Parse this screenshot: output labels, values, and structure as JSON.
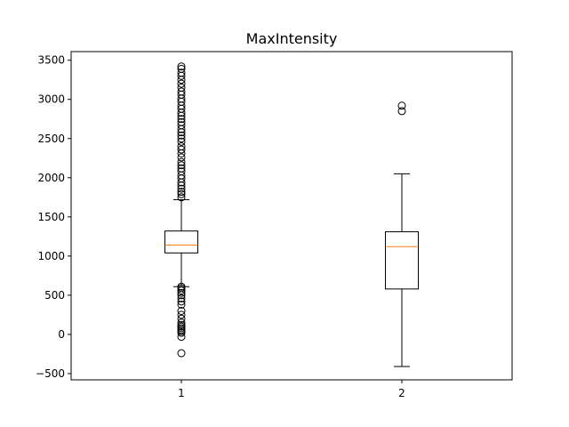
{
  "chart_data": {
    "type": "boxplot",
    "title": "MaxIntensity",
    "xlabel": "",
    "ylabel": "",
    "categories": [
      "1",
      "2"
    ],
    "ylim": [
      -580,
      3610
    ],
    "yticks": [
      -500,
      0,
      500,
      1000,
      1500,
      2000,
      2500,
      3000,
      3500
    ],
    "ytick_labels": [
      "−500",
      "0",
      "500",
      "1000",
      "1500",
      "2000",
      "2500",
      "3000",
      "3500"
    ],
    "grid": false,
    "colors": {
      "box": "#000000",
      "median": "#ff7f0e",
      "background": "#ffffff"
    },
    "boxes": [
      {
        "category": "1",
        "whisker_low": 610,
        "q1": 1040,
        "median": 1140,
        "q3": 1320,
        "whisker_high": 1720,
        "outliers": [
          -240,
          -30,
          20,
          40,
          60,
          80,
          100,
          120,
          150,
          200,
          250,
          300,
          380,
          420,
          460,
          500,
          530,
          560,
          590,
          610,
          1750,
          1790,
          1820,
          1860,
          1900,
          1940,
          1990,
          2030,
          2080,
          2120,
          2160,
          2200,
          2260,
          2310,
          2360,
          2400,
          2460,
          2500,
          2540,
          2580,
          2620,
          2670,
          2710,
          2750,
          2790,
          2830,
          2880,
          2920,
          2970,
          3010,
          3060,
          3100,
          3150,
          3200,
          3250,
          3300,
          3340,
          3390,
          3420
        ]
      },
      {
        "category": "2",
        "whisker_low": -410,
        "q1": 580,
        "median": 1120,
        "q3": 1310,
        "whisker_high": 2050,
        "outliers": [
          2850,
          2920
        ]
      }
    ]
  }
}
